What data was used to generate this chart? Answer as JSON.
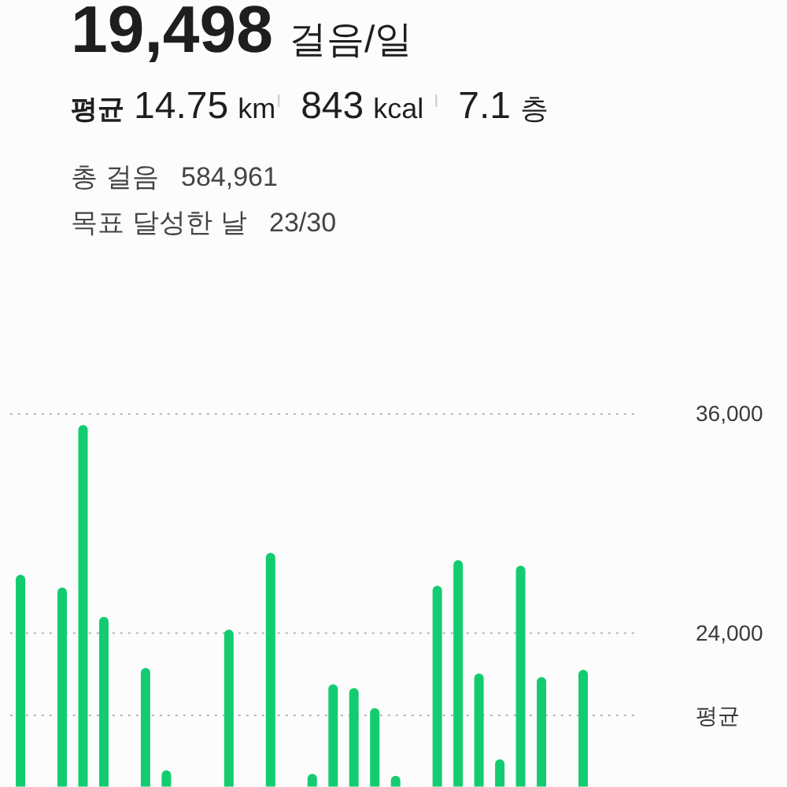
{
  "chart_data": {
    "type": "bar",
    "title": "19,498 걸음/일",
    "annotations": [
      "평균 14.75 km",
      "843 kcal",
      "7.1 층",
      "총 걸음 584,961",
      "목표 달성한 날 23/30"
    ],
    "categories": [
      null,
      null,
      null,
      null,
      null,
      null,
      null,
      null,
      null,
      null,
      null,
      null,
      null,
      null,
      null,
      null,
      null,
      null,
      null,
      null,
      null,
      null,
      null,
      null,
      null,
      null,
      null,
      null,
      null,
      null
    ],
    "values": [
      27200,
      null,
      26500,
      35400,
      24900,
      null,
      22100,
      16500,
      null,
      null,
      24200,
      null,
      28400,
      null,
      16300,
      21200,
      21000,
      19900,
      16200,
      null,
      26600,
      28000,
      21800,
      17100,
      27700,
      21600,
      null,
      22000,
      null,
      null
    ],
    "color": "#14cc70",
    "ylim": [
      15600,
      36000
    ],
    "yticks": [
      {
        "value": 24000,
        "label": "24,000"
      },
      {
        "value": 36000,
        "label": "36,000"
      }
    ],
    "grid": "y",
    "tick_labels": "y",
    "ref_lines": [
      {
        "axis": "y",
        "value": 19498,
        "label": "평균",
        "line_style": "dotted"
      }
    ]
  }
}
